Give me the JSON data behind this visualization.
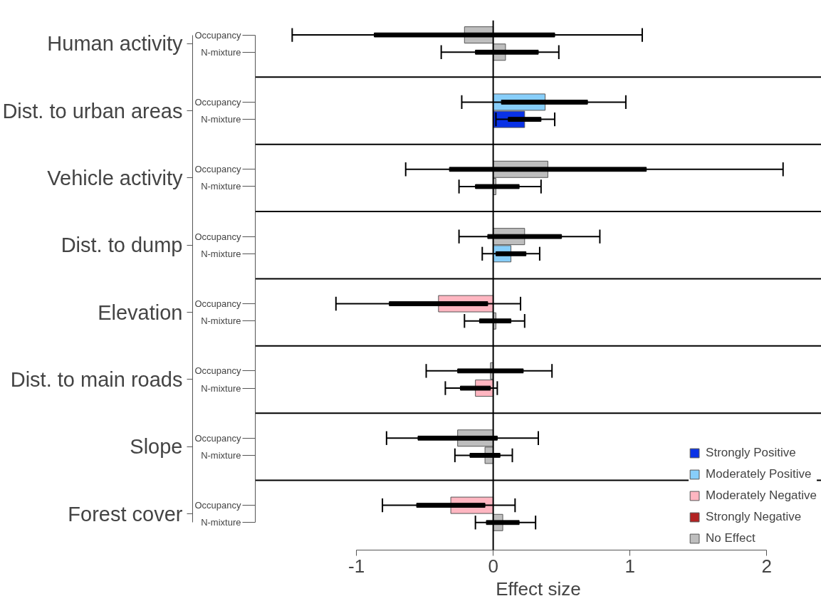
{
  "chart_data": {
    "type": "bar",
    "orientation": "horizontal",
    "xlabel": "Effect size",
    "xlim": [
      -1.74,
      2.4
    ],
    "xticks": [
      -1,
      0,
      1,
      2
    ],
    "grid": false,
    "legend": "bottom right",
    "categories": [
      "Occupancy",
      "N-mixture",
      "Occupancy",
      "N-mixture",
      "Occupancy",
      "N-mixture",
      "Occupancy",
      "N-mixture",
      "Occupancy",
      "N-mixture",
      "Occupancy",
      "N-mixture",
      "Occupancy",
      "N-mixture",
      "Occupancy",
      "N-mixture"
    ],
    "annotations": [
      "Human activity",
      "Dist. to urban areas",
      "Vehicle activity",
      "Dist. to dump",
      "Elevation",
      "Dist. to main roads",
      "Slope",
      "Forest cover"
    ],
    "ref_lines": [
      {
        "axis": "x",
        "value": 0,
        "color": "#000000"
      }
    ],
    "series": [
      {
        "name": "Strongly Positive",
        "color": "#0a32e6",
        "values": [
          null,
          null,
          null,
          0.23,
          null,
          null,
          null,
          null,
          null,
          null,
          null,
          null,
          null,
          null,
          null,
          null
        ],
        "errors": [
          null,
          null,
          null,
          [
            0.02,
            0.45
          ],
          null,
          null,
          null,
          null,
          null,
          null,
          null,
          null,
          null,
          null,
          null,
          null
        ]
      },
      {
        "name": "Moderately Positive",
        "color": "#87cefa",
        "values": [
          null,
          null,
          0.38,
          null,
          null,
          null,
          null,
          0.13,
          null,
          null,
          null,
          null,
          null,
          null,
          null,
          null
        ],
        "errors": [
          null,
          null,
          [
            -0.23,
            0.97
          ],
          null,
          null,
          null,
          null,
          [
            -0.08,
            0.34
          ],
          null,
          null,
          null,
          null,
          null,
          null,
          null,
          null
        ]
      },
      {
        "name": "Moderately Negative",
        "color": "#ffb6c1",
        "values": [
          null,
          null,
          null,
          null,
          null,
          null,
          null,
          null,
          -0.4,
          null,
          null,
          -0.13,
          null,
          null,
          -0.31,
          null
        ],
        "errors": [
          null,
          null,
          null,
          null,
          null,
          null,
          null,
          null,
          [
            -1.15,
            0.2
          ],
          null,
          null,
          [
            -0.35,
            0.03
          ],
          null,
          null,
          [
            -0.81,
            0.16
          ],
          null
        ]
      },
      {
        "name": "Strongly Negative",
        "color": "#b22222",
        "values": [
          null,
          null,
          null,
          null,
          null,
          null,
          null,
          null,
          null,
          null,
          null,
          null,
          null,
          null,
          null,
          null
        ]
      },
      {
        "name": "No Effect",
        "color": "#bebebe",
        "values": [
          -0.21,
          0.09,
          null,
          null,
          0.4,
          0.02,
          0.23,
          null,
          null,
          0.02,
          -0.02,
          null,
          -0.26,
          -0.06,
          null,
          0.07
        ],
        "errors": [
          [
            -1.47,
            1.09
          ],
          [
            -0.38,
            0.48
          ],
          null,
          null,
          [
            -0.64,
            2.12
          ],
          [
            -0.25,
            0.35
          ],
          [
            -0.25,
            0.78
          ],
          null,
          null,
          [
            -0.21,
            0.23
          ],
          [
            -0.49,
            0.43
          ],
          null,
          [
            -0.78,
            0.33
          ],
          [
            -0.28,
            0.14
          ],
          null,
          [
            -0.13,
            0.31
          ]
        ]
      },
      {
        "type": "bar",
        "color": "#000000",
        "base": [
          -0.87,
          -0.13,
          0.06,
          0.11,
          -0.32,
          -0.13,
          -0.04,
          0.02,
          -0.76,
          -0.1,
          -0.26,
          -0.24,
          -0.55,
          -0.17,
          -0.56,
          -0.05
        ],
        "values": [
          1.32,
          0.46,
          0.63,
          0.24,
          1.44,
          0.32,
          0.54,
          0.22,
          0.72,
          0.23,
          0.48,
          0.22,
          0.58,
          0.22,
          0.5,
          0.24
        ]
      }
    ]
  }
}
